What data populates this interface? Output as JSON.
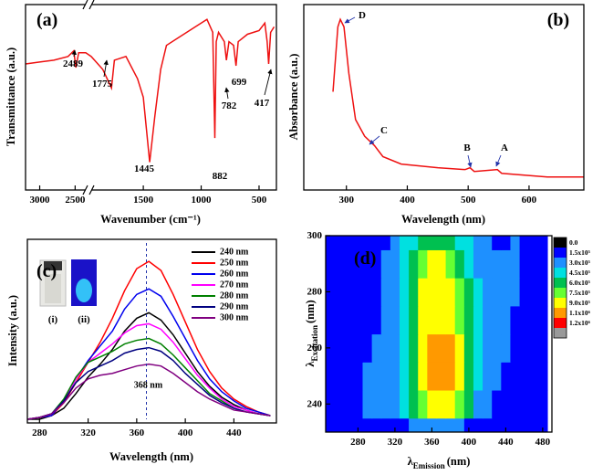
{
  "chart_data": [
    {
      "type": "line",
      "panel_label": "(a)",
      "xlabel": "Wavenumber (cm⁻¹)",
      "ylabel": "Transmittance (a.u.)",
      "xlim": [
        3200,
        350
      ],
      "axis_break": [
        2350,
        1950
      ],
      "xticks": [
        3000,
        2500,
        1500,
        1000,
        500
      ],
      "ylim": [
        0,
        100
      ],
      "x": [
        3200,
        3000,
        2800,
        2600,
        2520,
        2489,
        2450,
        2350,
        1950,
        1850,
        1775,
        1750,
        1650,
        1550,
        1500,
        1445,
        1400,
        1350,
        1300,
        1200,
        1100,
        1000,
        950,
        900,
        882,
        870,
        850,
        800,
        782,
        760,
        720,
        699,
        680,
        600,
        500,
        450,
        430,
        417,
        400,
        370
      ],
      "series": [
        {
          "color": "#ee1111",
          "values": [
            68,
            69,
            70,
            72,
            75,
            66,
            74,
            74,
            72,
            65,
            55,
            70,
            72,
            60,
            50,
            15,
            40,
            65,
            78,
            82,
            86,
            90,
            92,
            85,
            28,
            80,
            85,
            80,
            70,
            80,
            78,
            67,
            80,
            84,
            86,
            90,
            80,
            68,
            85,
            88
          ]
        }
      ],
      "annotations": [
        "2489",
        "1775",
        "1445",
        "882",
        "782",
        "699",
        "417"
      ]
    },
    {
      "type": "line",
      "panel_label": "(b)",
      "xlabel": "Wavelength (nm)",
      "ylabel": "Absorbance (a.u.)",
      "xlim": [
        230,
        690
      ],
      "xticks": [
        300,
        400,
        500,
        600
      ],
      "ylim": [
        0,
        100
      ],
      "x": [
        278,
        286,
        290,
        296,
        304,
        315,
        330,
        346,
        360,
        390,
        450,
        495,
        503,
        510,
        548,
        555,
        630,
        690
      ],
      "series": [
        {
          "color": "#ee1111",
          "values": [
            53,
            88,
            92,
            88,
            63,
            38,
            29,
            24,
            18,
            14,
            12,
            11,
            12,
            10,
            11,
            9,
            7,
            7
          ]
        }
      ],
      "annotations": [
        "D",
        "C",
        "B",
        "A"
      ],
      "annotation_color": "#2233aa"
    },
    {
      "type": "line",
      "panel_label": "(c)",
      "xlabel": "Wavelength (nm)",
      "ylabel": "Intensity (a.u.)",
      "xlim": [
        270,
        475
      ],
      "xticks": [
        280,
        320,
        360,
        400,
        440
      ],
      "ylim": [
        0,
        100
      ],
      "x": [
        270,
        280,
        290,
        300,
        310,
        320,
        330,
        340,
        350,
        360,
        370,
        380,
        390,
        400,
        410,
        420,
        430,
        440,
        450,
        460,
        470
      ],
      "series": [
        {
          "name": "240 nm",
          "color": "#000000",
          "values": [
            2,
            2,
            4,
            8,
            16,
            25,
            32,
            40,
            50,
            57,
            60,
            56,
            48,
            38,
            28,
            20,
            14,
            10,
            7,
            5,
            4
          ]
        },
        {
          "name": "250 nm",
          "color": "#ff0000",
          "values": [
            2,
            3,
            4,
            11,
            22,
            33,
            44,
            57,
            72,
            84,
            88,
            83,
            70,
            55,
            40,
            28,
            19,
            13,
            9,
            6,
            4
          ]
        },
        {
          "name": "260 nm",
          "color": "#0000ee",
          "values": [
            2,
            3,
            4,
            12,
            24,
            34,
            42,
            50,
            62,
            70,
            73,
            69,
            58,
            46,
            34,
            24,
            17,
            12,
            8,
            6,
            4
          ]
        },
        {
          "name": "270 nm",
          "color": "#ff00ff",
          "values": [
            2,
            3,
            5,
            12,
            24,
            33,
            38,
            43,
            49,
            53,
            54,
            51,
            44,
            35,
            26,
            19,
            13,
            9,
            7,
            5,
            4
          ]
        },
        {
          "name": "280 nm",
          "color": "#008000",
          "values": [
            2,
            3,
            5,
            13,
            25,
            33,
            36,
            39,
            43,
            45,
            46,
            43,
            37,
            30,
            23,
            16,
            12,
            8,
            6,
            5,
            4
          ]
        },
        {
          "name": "290 nm",
          "color": "#000080",
          "values": [
            2,
            3,
            5,
            12,
            22,
            28,
            31,
            34,
            38,
            40,
            41,
            39,
            34,
            27,
            21,
            15,
            11,
            8,
            6,
            5,
            4
          ]
        },
        {
          "name": "300 nm",
          "color": "#800080",
          "values": [
            2,
            3,
            5,
            11,
            19,
            24,
            26,
            27,
            29,
            31,
            32,
            31,
            27,
            22,
            17,
            13,
            10,
            7,
            6,
            5,
            4
          ]
        }
      ],
      "marker_x": 368,
      "marker_label": "368 nm",
      "marker_color": "#2233aa",
      "inset_labels": [
        "(i)",
        "(ii)"
      ]
    },
    {
      "type": "contour",
      "panel_label": "(d)",
      "xlabel_symbol": "λ",
      "xlabel_sub": "Emission",
      "xlabel_unit": "(nm)",
      "ylabel_symbol": "λ",
      "ylabel_sub": "Excitation",
      "ylabel_unit": "(nm)",
      "xlim": [
        245,
        490
      ],
      "xticks": [
        280,
        320,
        360,
        400,
        440,
        480
      ],
      "ylim": [
        230,
        300
      ],
      "yticks": [
        240,
        260,
        280,
        300
      ],
      "x": [
        250,
        260,
        270,
        280,
        290,
        300,
        310,
        320,
        330,
        340,
        350,
        360,
        370,
        380,
        390,
        400,
        410,
        420,
        430,
        440,
        450,
        460,
        470,
        480
      ],
      "y": [
        230,
        240,
        250,
        260,
        270,
        280,
        290,
        300
      ],
      "z": [
        [
          200000.0,
          200000.0,
          200000.0,
          200000.0,
          200000.0,
          200000.0,
          200000.0,
          200000.0,
          250000.0,
          320000.0,
          350000.0,
          400000.0,
          400000.0,
          350000.0,
          320000.0,
          250000.0,
          200000.0,
          200000.0,
          200000.0,
          200000.0,
          200000.0,
          200000.0,
          200000.0,
          200000.0
        ],
        [
          200000.0,
          200000.0,
          200000.0,
          200000.0,
          320000.0,
          350000.0,
          320000.0,
          350000.0,
          500000.0,
          650000.0,
          800000.0,
          950000.0,
          1000000.0,
          950000.0,
          800000.0,
          650000.0,
          400000.0,
          320000.0,
          200000.0,
          200000.0,
          200000.0,
          200000.0,
          200000.0,
          200000.0
        ],
        [
          200000.0,
          200000.0,
          200000.0,
          200000.0,
          320000.0,
          350000.0,
          320000.0,
          400000.0,
          550000.0,
          700000.0,
          950000.0,
          1100000.0,
          1150000.0,
          1100000.0,
          950000.0,
          700000.0,
          500000.0,
          350000.0,
          320000.0,
          200000.0,
          200000.0,
          200000.0,
          200000.0,
          200000.0
        ],
        [
          200000.0,
          200000.0,
          200000.0,
          200000.0,
          200000.0,
          320000.0,
          320000.0,
          400000.0,
          550000.0,
          700000.0,
          950000.0,
          1050000.0,
          1100000.0,
          1050000.0,
          900000.0,
          700000.0,
          500000.0,
          350000.0,
          330000.0,
          320000.0,
          200000.0,
          200000.0,
          200000.0,
          200000.0
        ],
        [
          200000.0,
          200000.0,
          200000.0,
          200000.0,
          200000.0,
          200000.0,
          320000.0,
          350000.0,
          500000.0,
          650000.0,
          900000.0,
          950000.0,
          950000.0,
          920000.0,
          800000.0,
          650000.0,
          460000.0,
          350000.0,
          330000.0,
          320000.0,
          200000.0,
          200000.0,
          200000.0,
          200000.0
        ],
        [
          200000.0,
          200000.0,
          200000.0,
          200000.0,
          200000.0,
          200000.0,
          300000.0,
          350000.0,
          460000.0,
          650000.0,
          900000.0,
          950000.0,
          950000.0,
          920000.0,
          750000.0,
          600000.0,
          460000.0,
          350000.0,
          320000.0,
          320000.0,
          320000.0,
          200000.0,
          200000.0,
          200000.0
        ],
        [
          200000.0,
          200000.0,
          200000.0,
          200000.0,
          200000.0,
          200000.0,
          300000.0,
          350000.0,
          460000.0,
          620000.0,
          800000.0,
          920000.0,
          920000.0,
          800000.0,
          650000.0,
          500000.0,
          350000.0,
          320000.0,
          320000.0,
          320000.0,
          320000.0,
          200000.0,
          200000.0,
          200000.0
        ],
        [
          200000.0,
          200000.0,
          200000.0,
          200000.0,
          200000.0,
          200000.0,
          200000.0,
          320000.0,
          460000.0,
          500000.0,
          620000.0,
          650000.0,
          650000.0,
          620000.0,
          500000.0,
          460000.0,
          320000.0,
          320000.0,
          200000.0,
          200000.0,
          320000.0,
          200000.0,
          200000.0,
          200000.0
        ]
      ],
      "colorbar": {
        "ticks": [
          {
            "value": 0,
            "label": "0.0"
          },
          {
            "value": 150000,
            "label": "1.5x10⁵"
          },
          {
            "value": 300000,
            "label": "3.0x10⁵"
          },
          {
            "value": 450000,
            "label": "4.5x10⁵"
          },
          {
            "value": 600000,
            "label": "6.0x10⁵"
          },
          {
            "value": 750000,
            "label": "7.5x10⁵"
          },
          {
            "value": 900000,
            "label": "9.0x10⁵"
          },
          {
            "value": 1050000,
            "label": "1.1x10⁶"
          },
          {
            "value": 1200000,
            "label": "1.2x10⁶"
          }
        ],
        "colors": [
          "#000000",
          "#0000ff",
          "#1e90ff",
          "#00e0e0",
          "#00c050",
          "#66ff33",
          "#ffff00",
          "#ff9900",
          "#ff0000",
          "#999999"
        ]
      }
    }
  ]
}
